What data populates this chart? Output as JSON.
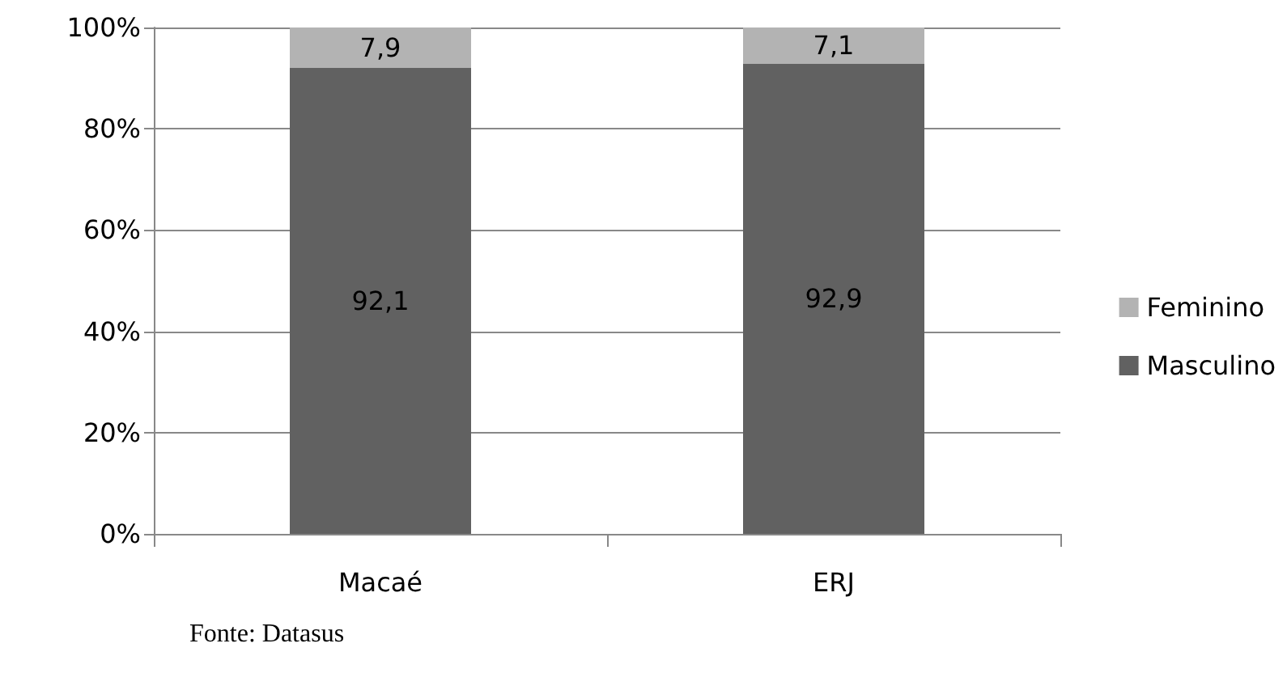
{
  "chart_data": {
    "type": "bar",
    "stacked": true,
    "categories": [
      "Macaé",
      "ERJ"
    ],
    "series": [
      {
        "name": "Masculino",
        "color": "#616161",
        "values": [
          92.1,
          92.9
        ],
        "value_labels": [
          "92,1",
          "92,9"
        ]
      },
      {
        "name": "Feminino",
        "color": "#b3b3b3",
        "values": [
          7.9,
          7.1
        ],
        "value_labels": [
          "7,9",
          "7,1"
        ]
      }
    ],
    "ylim": [
      0,
      100
    ],
    "yticks": [
      {
        "value": 0,
        "label": "0%"
      },
      {
        "value": 20,
        "label": "20%"
      },
      {
        "value": 40,
        "label": "40%"
      },
      {
        "value": 60,
        "label": "60%"
      },
      {
        "value": 80,
        "label": "80%"
      },
      {
        "value": 100,
        "label": "100%"
      }
    ],
    "grid": "y",
    "legend": "right",
    "annotations": [
      "Fonte: Datasus"
    ]
  }
}
